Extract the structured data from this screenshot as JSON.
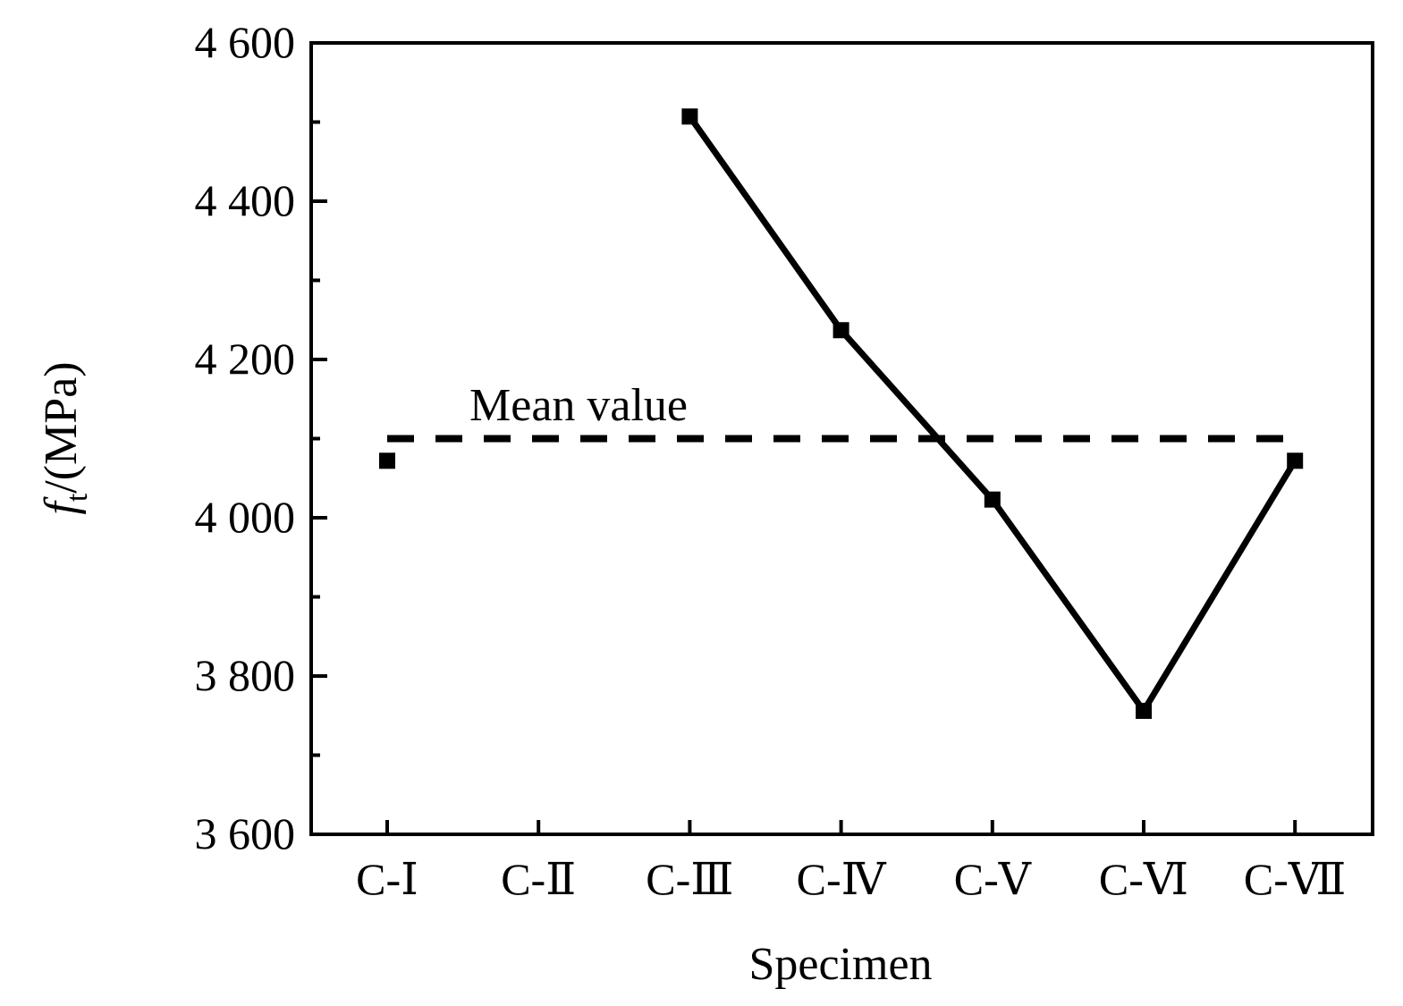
{
  "chart_data": {
    "type": "line",
    "title": "",
    "xlabel": "Specimen",
    "ylabel": {
      "symbol": "f",
      "subscript": "t",
      "unit": "/(MPa)"
    },
    "categories": [
      "C-Ⅰ",
      "C-Ⅱ",
      "C-Ⅲ",
      "C-Ⅳ",
      "C-Ⅴ",
      "C-Ⅵ",
      "C-Ⅶ"
    ],
    "values": [
      4072,
      null,
      4507,
      4237,
      4023,
      3756,
      4072
    ],
    "ylim": [
      3600,
      4600
    ],
    "yticks": [
      3600,
      3800,
      4000,
      4200,
      4400,
      4600
    ],
    "ytick_labels": [
      "3 600",
      "3 800",
      "4 000",
      "4 200",
      "4 400",
      "4 600"
    ],
    "mean_line": {
      "label": "Mean value",
      "value": 4100,
      "style": "dashed"
    },
    "marker": "square",
    "color": "#000000",
    "grid": false
  }
}
